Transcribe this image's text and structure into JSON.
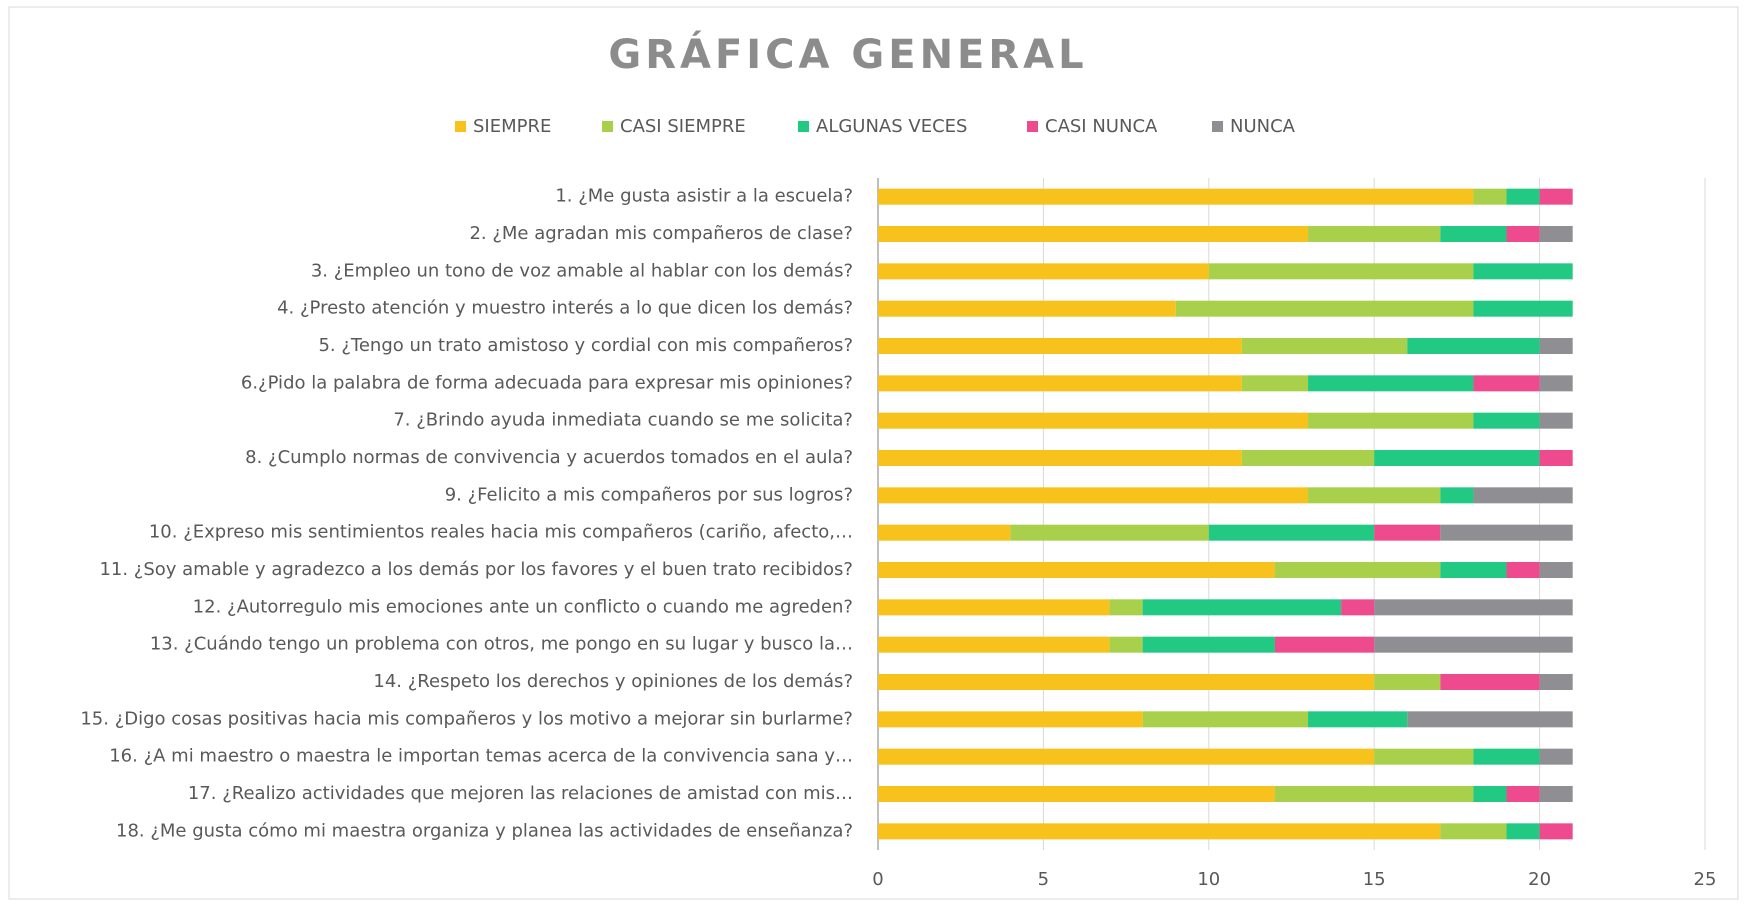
{
  "chart_data": {
    "type": "stacked_barh",
    "title": "GRÁFICA GENERAL",
    "categories": [
      "1. ¿Me gusta asistir a la escuela?",
      "2. ¿Me agradan mis compañeros de clase?",
      "3. ¿Empleo un tono de voz amable al hablar con los demás?",
      "4. ¿Presto atención y muestro interés a lo que dicen los demás?",
      "5. ¿Tengo un trato amistoso y cordial con mis compañeros?",
      "6.¿Pido la palabra de forma adecuada para expresar mis opiniones?",
      "7. ¿Brindo ayuda inmediata cuando se me solicita?",
      "8. ¿Cumplo normas de convivencia y acuerdos tomados en el aula?",
      "9. ¿Felicito a mis compañeros por sus logros?",
      "10. ¿Expreso mis sentimientos reales hacia mis compañeros (cariño, afecto,…",
      "11. ¿Soy amable y agradezco a los demás por los favores y el buen trato recibidos?",
      "12. ¿Autorregulo mis emociones ante un conflicto o cuando me agreden?",
      "13. ¿Cuándo tengo un problema con otros, me pongo en su lugar y busco la…",
      "14. ¿Respeto los derechos y opiniones de los demás?",
      "15. ¿Digo cosas positivas hacia mis compañeros y los motivo a mejorar sin burlarme?",
      "16. ¿A mi maestro o maestra le importan temas acerca de la convivencia sana y…",
      "17. ¿Realizo actividades que mejoren las relaciones de amistad con mis…",
      "18. ¿Me gusta cómo mi maestra organiza y planea las actividades de enseñanza?"
    ],
    "series": [
      {
        "name": "SIEMPRE",
        "color": "#f7c21b",
        "values": [
          18,
          13,
          10,
          9,
          11,
          11,
          13,
          11,
          13,
          4,
          12,
          7,
          7,
          15,
          8,
          15,
          12,
          17
        ]
      },
      {
        "name": "CASI SIEMPRE",
        "color": "#a8d04a",
        "values": [
          1,
          4,
          8,
          9,
          5,
          2,
          5,
          4,
          4,
          6,
          5,
          1,
          1,
          2,
          5,
          3,
          6,
          2
        ]
      },
      {
        "name": "ALGUNAS VECES",
        "color": "#22c982",
        "values": [
          1,
          2,
          3,
          3,
          4,
          5,
          2,
          5,
          1,
          5,
          2,
          6,
          4,
          0,
          3,
          2,
          1,
          1
        ]
      },
      {
        "name": "CASI NUNCA",
        "color": "#ee4b8f",
        "values": [
          1,
          1,
          0,
          0,
          0,
          2,
          0,
          1,
          0,
          2,
          1,
          1,
          3,
          3,
          0,
          0,
          1,
          1
        ]
      },
      {
        "name": "NUNCA",
        "color": "#8e8e93",
        "values": [
          0,
          1,
          0,
          0,
          1,
          1,
          1,
          0,
          3,
          4,
          1,
          6,
          6,
          1,
          5,
          1,
          1,
          0
        ]
      }
    ],
    "xlim": [
      0,
      25
    ],
    "xticks": [
      0,
      5,
      10,
      15,
      20,
      25
    ],
    "grid": true,
    "legend": "top"
  }
}
